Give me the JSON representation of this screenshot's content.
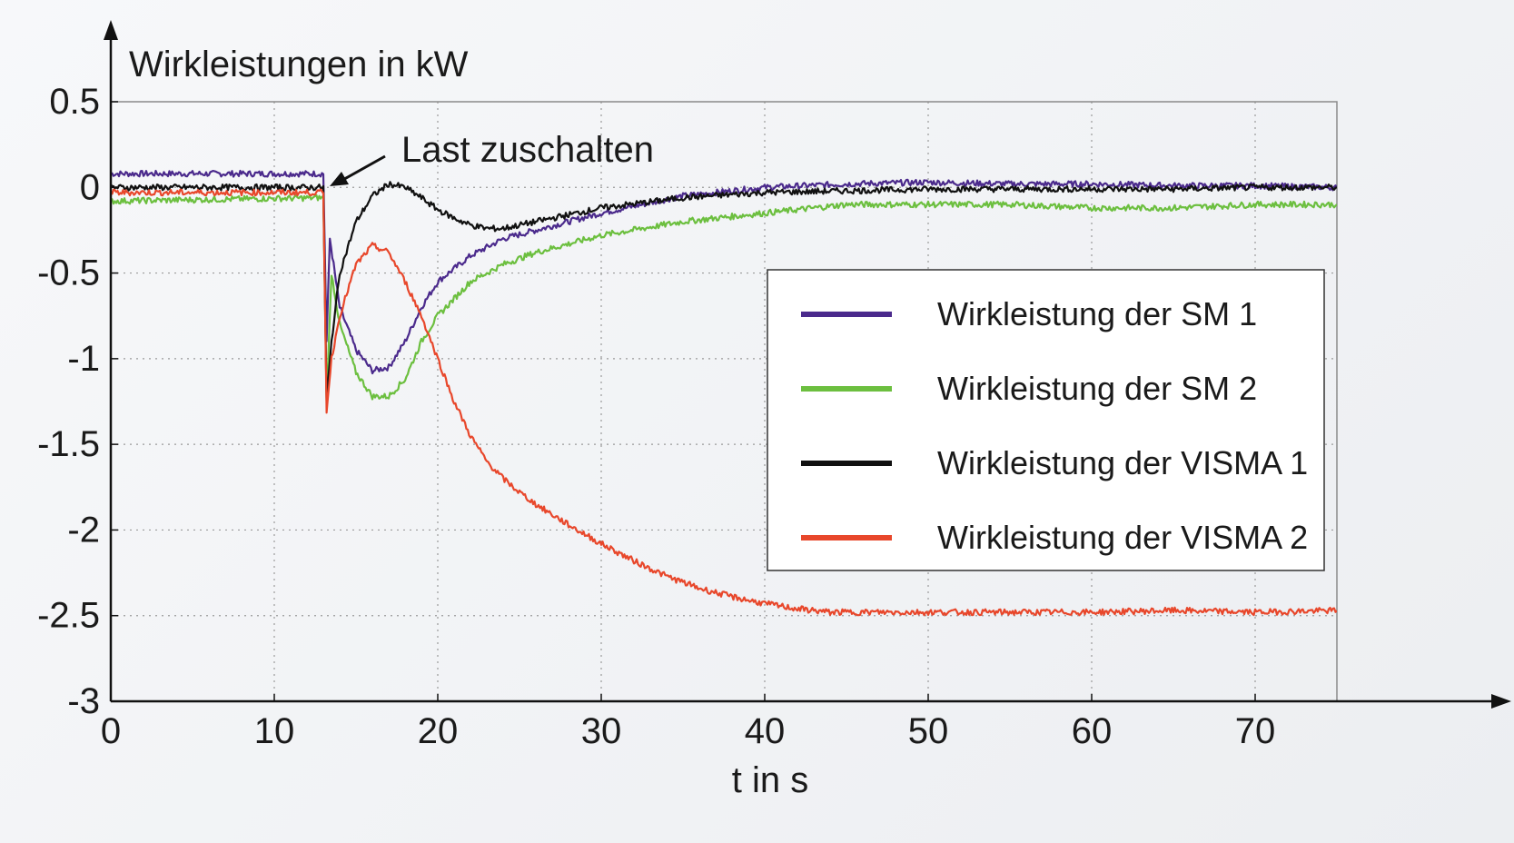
{
  "chart_data": {
    "type": "line",
    "ylabel": "Wirkleistungen in kW",
    "xlabel": "t in s",
    "xlim": [
      0,
      75
    ],
    "ylim": [
      -3,
      0.5
    ],
    "xticks": [
      0,
      10,
      20,
      30,
      40,
      50,
      60,
      70
    ],
    "yticks": [
      0.5,
      0,
      -0.5,
      -1,
      -1.5,
      -2,
      -2.5,
      -3
    ],
    "ytick_labels": [
      "0.5",
      "0",
      "-0.5",
      "-1",
      "-1.5",
      "-2",
      "-2.5",
      "-3"
    ],
    "grid": true,
    "legend_position": "right",
    "annotation": {
      "text": "Last zuschalten",
      "x": 13.3,
      "y": 0.0
    },
    "series": [
      {
        "name": "Wirkleistung der SM 1",
        "color": "#4b2a8c",
        "x": [
          0,
          13,
          13.2,
          13.4,
          13.7,
          14,
          15,
          16,
          17,
          18,
          19,
          20,
          22,
          24,
          26,
          28,
          30,
          35,
          40,
          45,
          50,
          55,
          60,
          65,
          70,
          75
        ],
        "y": [
          0.08,
          0.08,
          -0.9,
          -0.3,
          -0.5,
          -0.7,
          -0.95,
          -1.07,
          -1.05,
          -0.9,
          -0.7,
          -0.55,
          -0.4,
          -0.3,
          -0.25,
          -0.2,
          -0.15,
          -0.05,
          0.0,
          0.02,
          0.03,
          0.02,
          0.02,
          0.01,
          0.01,
          0.0
        ]
      },
      {
        "name": "Wirkleistung der SM 2",
        "color": "#6cbf3f",
        "x": [
          0,
          13,
          13.2,
          13.5,
          14,
          15,
          16,
          17,
          18,
          19,
          20,
          22,
          24,
          26,
          28,
          30,
          35,
          40,
          45,
          50,
          55,
          60,
          65,
          70,
          75
        ],
        "y": [
          -0.08,
          -0.06,
          -1.25,
          -0.5,
          -0.8,
          -1.08,
          -1.22,
          -1.22,
          -1.12,
          -0.9,
          -0.75,
          -0.55,
          -0.45,
          -0.38,
          -0.33,
          -0.28,
          -0.2,
          -0.15,
          -0.1,
          -0.1,
          -0.1,
          -0.12,
          -0.12,
          -0.1,
          -0.1
        ]
      },
      {
        "name": "Wirkleistung der VISMA 1",
        "color": "#111111",
        "x": [
          0,
          13,
          13.2,
          13.5,
          14,
          15,
          16,
          17,
          18,
          19,
          20,
          21,
          22,
          23,
          24,
          25,
          26,
          28,
          30,
          35,
          40,
          45,
          50,
          55,
          60,
          65,
          70,
          75
        ],
        "y": [
          0.0,
          0.0,
          -1.25,
          -0.9,
          -0.5,
          -0.2,
          -0.05,
          0.02,
          0.0,
          -0.06,
          -0.13,
          -0.18,
          -0.22,
          -0.24,
          -0.24,
          -0.22,
          -0.2,
          -0.16,
          -0.12,
          -0.06,
          -0.03,
          -0.02,
          -0.01,
          -0.01,
          -0.01,
          -0.01,
          0.0,
          0.0
        ]
      },
      {
        "name": "Wirkleistung der VISMA 2",
        "color": "#e8472b",
        "x": [
          0,
          13,
          13.2,
          13.5,
          14,
          15,
          16,
          17,
          18,
          19,
          20,
          21,
          22,
          23,
          24,
          25,
          26,
          28,
          30,
          32,
          34,
          36,
          38,
          40,
          42,
          44,
          46,
          48,
          50,
          55,
          60,
          65,
          70,
          75
        ],
        "y": [
          -0.03,
          -0.03,
          -1.3,
          -1.0,
          -0.75,
          -0.45,
          -0.34,
          -0.38,
          -0.55,
          -0.75,
          -1.0,
          -1.25,
          -1.45,
          -1.6,
          -1.7,
          -1.78,
          -1.85,
          -1.97,
          -2.08,
          -2.18,
          -2.27,
          -2.34,
          -2.39,
          -2.43,
          -2.46,
          -2.48,
          -2.48,
          -2.48,
          -2.48,
          -2.48,
          -2.48,
          -2.47,
          -2.48,
          -2.47
        ]
      }
    ]
  }
}
